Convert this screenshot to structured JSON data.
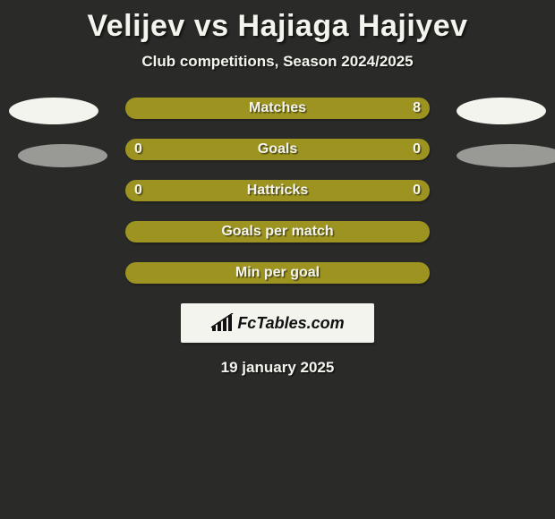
{
  "background_color": "#2a2b28",
  "text_color": "#f4f4ef",
  "row_bg_default": "#9c9321",
  "row_bg_matches_left": "#f4f4ef",
  "row_bg_matches_right": "#9c9321",
  "title": "Velijev vs Hajiaga Hajiyev",
  "subtitle": "Club competitions, Season 2024/2025",
  "rows": [
    {
      "label": "Matches",
      "left": "",
      "right": "8",
      "left_pct": 0,
      "type": "split"
    },
    {
      "label": "Goals",
      "left": "0",
      "right": "0",
      "type": "solid"
    },
    {
      "label": "Hattricks",
      "left": "0",
      "right": "0",
      "type": "solid"
    },
    {
      "label": "Goals per match",
      "left": "",
      "right": "",
      "type": "solid"
    },
    {
      "label": "Min per goal",
      "left": "",
      "right": "",
      "type": "solid"
    }
  ],
  "logo_text": "FcTables.com",
  "date": "19 january 2025"
}
